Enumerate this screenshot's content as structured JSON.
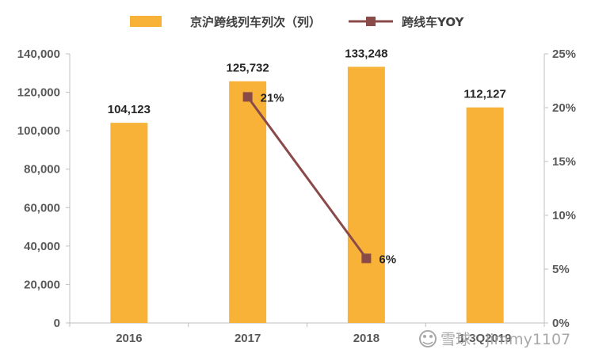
{
  "chart_data": {
    "type": "bar",
    "categories": [
      "2016",
      "2017",
      "2018",
      "1-3Q2019"
    ],
    "series": [
      {
        "name": "京沪跨线列车列次（列）",
        "kind": "bar",
        "axis": "left",
        "values": [
          104123,
          125732,
          133248,
          112127
        ],
        "labels": [
          "104,123",
          "125,732",
          "133,248",
          "112,127"
        ]
      },
      {
        "name": "跨线车YOY",
        "kind": "line",
        "axis": "right",
        "values": [
          null,
          0.21,
          0.06,
          null
        ],
        "labels": [
          null,
          "21%",
          "6%",
          null
        ]
      }
    ],
    "y_left": {
      "min": 0,
      "max": 140000,
      "ticks": [
        0,
        20000,
        40000,
        60000,
        80000,
        100000,
        120000,
        140000
      ],
      "tick_labels": [
        "0",
        "20,000",
        "40,000",
        "60,000",
        "80,000",
        "100,000",
        "120,000",
        "140,000"
      ]
    },
    "y_right": {
      "min": 0,
      "max": 0.25,
      "ticks": [
        0,
        0.05,
        0.1,
        0.15,
        0.2,
        0.25
      ],
      "tick_labels": [
        "0%",
        "5%",
        "10%",
        "15%",
        "20%",
        "25%"
      ]
    },
    "legend_position": "top",
    "grid": false,
    "title": "",
    "xlabel": "",
    "ylabel": ""
  },
  "colors": {
    "bar": "#F8B237",
    "line": "#8B4A4A",
    "axis": "#BFBFBF"
  },
  "watermark": {
    "text": "雪球：jimmy1107"
  }
}
